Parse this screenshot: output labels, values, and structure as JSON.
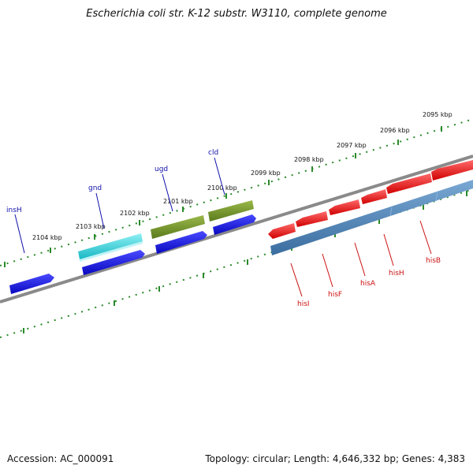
{
  "title": "Escherichia coli str. K-12 substr. W3110, complete genome",
  "footer": {
    "accession": "Accession: AC_000091",
    "summary": "Topology: circular; Length: 4,646,332 bp; Genes: 4,383"
  },
  "colors": {
    "backbone": "#8a8a8a",
    "ticks": "#2a8a2a",
    "forward_label": "#1010aa",
    "reverse_label": "#cc1010",
    "gene_blue": "#1414e0",
    "gene_cyan": "#22c8d0",
    "gene_olive": "#6b8c28",
    "gene_red": "#ee1010",
    "gene_steel": "#4a82b8"
  },
  "kbp_labels": [
    "2104 kbp",
    "2103 kbp",
    "2102 kbp",
    "2101 kbp",
    "2100 kbp",
    "2099 kbp",
    "2098 kbp",
    "2097 kbp",
    "2096 kbp",
    "2095 kbp"
  ],
  "forward_gene_labels": [
    "insH",
    "gnd",
    "ugd",
    "cld"
  ],
  "reverse_gene_labels": [
    "hisI",
    "hisF",
    "hisA",
    "hisH",
    "hisB"
  ]
}
